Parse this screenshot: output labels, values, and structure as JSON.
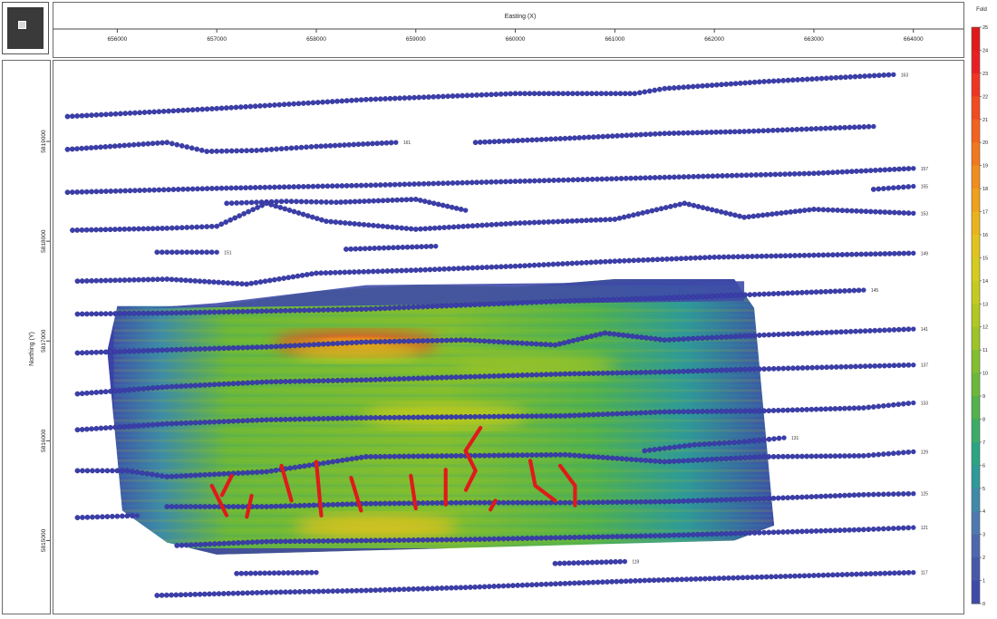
{
  "chart_data": {
    "type": "heatmap",
    "title": "",
    "xlabel": "Easting (X)",
    "ylabel": "Northing (Y)",
    "colorbar_label": "Fold",
    "xlim": [
      655450,
      664230
    ],
    "ylim": [
      5814450,
      5819700
    ],
    "x_ticks": [
      {
        "value": 656000,
        "label": "656000"
      },
      {
        "value": 657000,
        "label": "657000"
      },
      {
        "value": 658000,
        "label": "658000"
      },
      {
        "value": 659000,
        "label": "659000"
      },
      {
        "value": 660000,
        "label": "660000"
      },
      {
        "value": 661000,
        "label": "661000"
      },
      {
        "value": 662000,
        "label": "662000"
      },
      {
        "value": 663000,
        "label": "663000"
      },
      {
        "value": 664000,
        "label": "664000"
      }
    ],
    "y_ticks": [
      {
        "value": 5815000,
        "label": "5815000"
      },
      {
        "value": 5816000,
        "label": "5816000"
      },
      {
        "value": 5817000,
        "label": "5817000"
      },
      {
        "value": 5818000,
        "label": "5818000"
      },
      {
        "value": 5819000,
        "label": "5819000"
      }
    ],
    "colorbar": {
      "min": 0,
      "max": 25,
      "ticks": [
        "0",
        "1",
        "2",
        "3",
        "4",
        "5",
        "6",
        "7",
        "8",
        "9",
        "10",
        "11",
        "12",
        "13",
        "14",
        "15",
        "16",
        "17",
        "18",
        "19",
        "20",
        "21",
        "22",
        "23",
        "24",
        "25"
      ],
      "colors": [
        "#3b3ea8",
        "#3f4aa8",
        "#4758ab",
        "#4e67ae",
        "#4e79b0",
        "#3f8aa8",
        "#2f9a98",
        "#2aa581",
        "#3aac67",
        "#52b24b",
        "#6bb839",
        "#83be2e",
        "#9cc427",
        "#b1c822",
        "#c4cb1f",
        "#d5cc1d",
        "#e2c31c",
        "#eab31c",
        "#eea11c",
        "#f08d1c",
        "#f2781d",
        "#f3621e",
        "#f24b20",
        "#ef3422",
        "#e81f22",
        "#e01a1a"
      ]
    },
    "series": [
      {
        "type": "receiver-line",
        "label": "163",
        "points": [
          [
            655500,
            5819250
          ],
          [
            657000,
            5819330
          ],
          [
            658500,
            5819420
          ],
          [
            660000,
            5819480
          ],
          [
            661200,
            5819480
          ],
          [
            661500,
            5819530
          ],
          [
            662500,
            5819600
          ],
          [
            663800,
            5819670
          ]
        ]
      },
      {
        "type": "receiver-line",
        "label": "161",
        "points": [
          [
            655500,
            5818920
          ],
          [
            656500,
            5818990
          ],
          [
            656900,
            5818900
          ],
          [
            657400,
            5818910
          ],
          [
            658000,
            5818950
          ],
          [
            658800,
            5818990
          ]
        ]
      },
      {
        "type": "receiver-line",
        "label": "",
        "points": [
          [
            659600,
            5818990
          ],
          [
            660500,
            5819030
          ],
          [
            661500,
            5819080
          ],
          [
            662300,
            5819100
          ],
          [
            663600,
            5819150
          ]
        ]
      },
      {
        "type": "receiver-line",
        "label": "157",
        "points": [
          [
            655500,
            5818490
          ],
          [
            657000,
            5818530
          ],
          [
            658500,
            5818560
          ],
          [
            660000,
            5818600
          ],
          [
            661500,
            5818640
          ],
          [
            663000,
            5818680
          ],
          [
            664000,
            5818730
          ]
        ]
      },
      {
        "type": "receiver-line",
        "label": "155",
        "points": [
          [
            663600,
            5818520
          ],
          [
            664000,
            5818550
          ]
        ]
      },
      {
        "type": "receiver-line",
        "label": "",
        "points": [
          [
            657100,
            5818380
          ],
          [
            657700,
            5818400
          ],
          [
            658200,
            5818390
          ],
          [
            659000,
            5818420
          ],
          [
            659500,
            5818310
          ]
        ]
      },
      {
        "type": "receiver-line",
        "label": "153",
        "points": [
          [
            655550,
            5818110
          ],
          [
            656500,
            5818130
          ],
          [
            657000,
            5818150
          ],
          [
            657500,
            5818380
          ],
          [
            658100,
            5818200
          ],
          [
            659000,
            5818120
          ],
          [
            660000,
            5818180
          ],
          [
            661000,
            5818220
          ],
          [
            661700,
            5818380
          ],
          [
            662300,
            5818240
          ],
          [
            663000,
            5818320
          ],
          [
            664000,
            5818280
          ]
        ]
      },
      {
        "type": "receiver-line",
        "label": "151",
        "points": [
          [
            656400,
            5817890
          ],
          [
            657000,
            5817890
          ]
        ]
      },
      {
        "type": "receiver-line",
        "label": "",
        "points": [
          [
            658300,
            5817920
          ],
          [
            659200,
            5817950
          ]
        ]
      },
      {
        "type": "receiver-line",
        "label": "149",
        "points": [
          [
            655600,
            5817600
          ],
          [
            656500,
            5817620
          ],
          [
            657300,
            5817570
          ],
          [
            658000,
            5817680
          ],
          [
            659000,
            5817710
          ],
          [
            660000,
            5817750
          ],
          [
            661000,
            5817800
          ],
          [
            662000,
            5817840
          ],
          [
            663000,
            5817860
          ],
          [
            664000,
            5817880
          ]
        ]
      },
      {
        "type": "receiver-line",
        "label": "145",
        "points": [
          [
            655600,
            5817270
          ],
          [
            656500,
            5817280
          ],
          [
            657500,
            5817300
          ],
          [
            658500,
            5817320
          ],
          [
            659500,
            5817360
          ],
          [
            660500,
            5817400
          ],
          [
            661500,
            5817430
          ],
          [
            662500,
            5817470
          ],
          [
            663500,
            5817510
          ]
        ]
      },
      {
        "type": "receiver-line",
        "label": "141",
        "points": [
          [
            655600,
            5816880
          ],
          [
            656500,
            5816910
          ],
          [
            657500,
            5816940
          ],
          [
            658500,
            5816990
          ],
          [
            659500,
            5817010
          ],
          [
            660400,
            5816960
          ],
          [
            660900,
            5817080
          ],
          [
            661500,
            5817010
          ],
          [
            662500,
            5817060
          ],
          [
            664000,
            5817120
          ]
        ]
      },
      {
        "type": "receiver-line",
        "label": "137",
        "points": [
          [
            655600,
            5816470
          ],
          [
            656500,
            5816540
          ],
          [
            657500,
            5816590
          ],
          [
            658500,
            5816610
          ],
          [
            659500,
            5816640
          ],
          [
            660500,
            5816670
          ],
          [
            661500,
            5816690
          ],
          [
            662500,
            5816720
          ],
          [
            664000,
            5816760
          ]
        ]
      },
      {
        "type": "receiver-line",
        "label": "133",
        "points": [
          [
            655600,
            5816110
          ],
          [
            656500,
            5816170
          ],
          [
            657500,
            5816210
          ],
          [
            658500,
            5816230
          ],
          [
            659500,
            5816240
          ],
          [
            660500,
            5816250
          ],
          [
            661500,
            5816290
          ],
          [
            662500,
            5816300
          ],
          [
            663500,
            5816330
          ],
          [
            664000,
            5816380
          ]
        ]
      },
      {
        "type": "receiver-line",
        "label": "131",
        "points": [
          [
            661300,
            5815900
          ],
          [
            661800,
            5815960
          ],
          [
            662300,
            5815990
          ],
          [
            662700,
            5816030
          ]
        ]
      },
      {
        "type": "receiver-line",
        "label": "129",
        "points": [
          [
            655600,
            5815700
          ],
          [
            656100,
            5815700
          ],
          [
            656500,
            5815640
          ],
          [
            657500,
            5815690
          ],
          [
            658500,
            5815840
          ],
          [
            659500,
            5815850
          ],
          [
            660500,
            5815860
          ],
          [
            661500,
            5815790
          ],
          [
            662500,
            5815840
          ],
          [
            663500,
            5815850
          ],
          [
            664000,
            5815890
          ]
        ]
      },
      {
        "type": "receiver-line",
        "label": "125",
        "points": [
          [
            656500,
            5815340
          ],
          [
            657500,
            5815340
          ],
          [
            658500,
            5815370
          ],
          [
            659500,
            5815380
          ],
          [
            660500,
            5815380
          ],
          [
            661500,
            5815390
          ],
          [
            662500,
            5815420
          ],
          [
            663500,
            5815460
          ],
          [
            664000,
            5815470
          ]
        ]
      },
      {
        "type": "receiver-line",
        "label": "",
        "points": [
          [
            655600,
            5815230
          ],
          [
            656200,
            5815250
          ]
        ]
      },
      {
        "type": "receiver-line",
        "label": "121",
        "points": [
          [
            656600,
            5814950
          ],
          [
            657500,
            5814990
          ],
          [
            658500,
            5815000
          ],
          [
            659500,
            5815010
          ],
          [
            660500,
            5815030
          ],
          [
            661500,
            5815050
          ],
          [
            662500,
            5815080
          ],
          [
            663500,
            5815110
          ],
          [
            664000,
            5815130
          ]
        ]
      },
      {
        "type": "receiver-line",
        "label": "119",
        "points": [
          [
            660400,
            5814770
          ],
          [
            661100,
            5814790
          ]
        ]
      },
      {
        "type": "receiver-line",
        "label": "",
        "points": [
          [
            657200,
            5814670
          ],
          [
            658000,
            5814680
          ]
        ]
      },
      {
        "type": "receiver-line",
        "label": "117",
        "points": [
          [
            656400,
            5814450
          ],
          [
            657500,
            5814480
          ],
          [
            658500,
            5814500
          ],
          [
            659500,
            5814530
          ],
          [
            660500,
            5814570
          ],
          [
            661300,
            5814600
          ],
          [
            662000,
            5814620
          ],
          [
            663000,
            5814650
          ],
          [
            664000,
            5814680
          ]
        ]
      }
    ],
    "red_segments": [
      [
        [
          656950,
          5815550
        ],
        [
          657100,
          5815250
        ]
      ],
      [
        [
          657150,
          5815650
        ],
        [
          657050,
          5815450
        ]
      ],
      [
        [
          657350,
          5815450
        ],
        [
          657300,
          5815230
        ]
      ],
      [
        [
          657650,
          5815750
        ],
        [
          657750,
          5815400
        ]
      ],
      [
        [
          658000,
          5815790
        ],
        [
          658050,
          5815250
        ]
      ],
      [
        [
          658350,
          5815630
        ],
        [
          658450,
          5815300
        ]
      ],
      [
        [
          658950,
          5815650
        ],
        [
          659000,
          5815320
        ]
      ],
      [
        [
          659300,
          5815710
        ],
        [
          659300,
          5815360
        ]
      ],
      [
        [
          659650,
          5816130
        ],
        [
          659500,
          5815900
        ],
        [
          659600,
          5815700
        ],
        [
          659500,
          5815500
        ]
      ],
      [
        [
          659800,
          5815400
        ],
        [
          659750,
          5815310
        ]
      ],
      [
        [
          660150,
          5815800
        ],
        [
          660200,
          5815550
        ],
        [
          660400,
          5815400
        ]
      ],
      [
        [
          660450,
          5815750
        ],
        [
          660600,
          5815550
        ],
        [
          660600,
          5815350
        ]
      ]
    ],
    "hot_spots": [
      {
        "x": 658400,
        "y": 5816980,
        "fold": 22
      },
      {
        "x": 658600,
        "y": 5815140,
        "fold": 16
      },
      {
        "x": 659300,
        "y": 5816250,
        "fold": 14
      },
      {
        "x": 660200,
        "y": 5816750,
        "fold": 12
      }
    ]
  }
}
